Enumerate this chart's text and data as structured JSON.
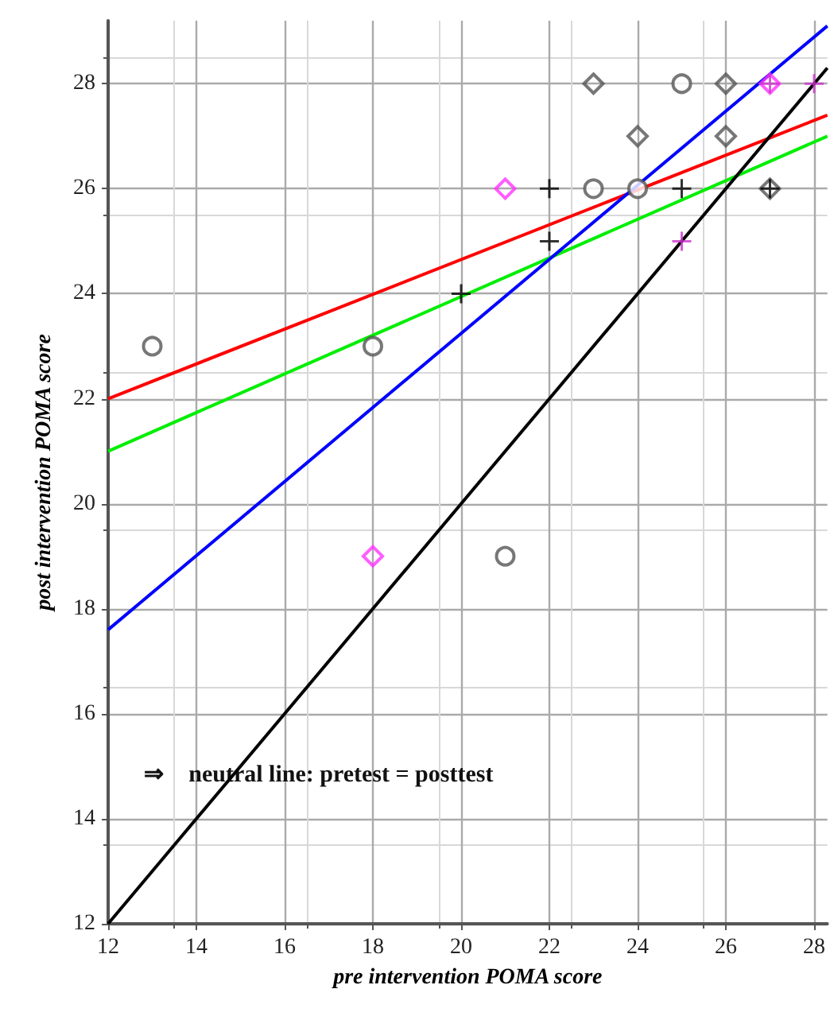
{
  "chart_data": {
    "type": "scatter",
    "xlabel": "pre intervention POMA score",
    "ylabel": "post intervention POMA score",
    "xlim": [
      12,
      28.3
    ],
    "ylim": [
      12,
      29.2
    ],
    "xticks": [
      12,
      14,
      16,
      18,
      20,
      22,
      24,
      26,
      28
    ],
    "yticks": [
      12,
      14,
      16,
      18,
      20,
      22,
      24,
      26,
      28
    ],
    "grid": true,
    "series": [
      {
        "marker": "circle",
        "color": "#555555",
        "x": [
          13,
          18,
          21,
          23,
          24,
          25
        ],
        "values": [
          23,
          23,
          19,
          26,
          26,
          28
        ]
      },
      {
        "marker": "diamond",
        "color": "#555555",
        "x": [
          23,
          24,
          26,
          26,
          27
        ],
        "values": [
          28,
          27,
          28,
          27,
          26
        ]
      },
      {
        "marker": "cross",
        "color": "#000000",
        "x": [
          20,
          22,
          22,
          25,
          27
        ],
        "values": [
          24,
          26,
          25,
          26,
          26
        ]
      },
      {
        "marker": "diamond",
        "color": "#ff33ff",
        "x": [
          18,
          21,
          27
        ],
        "values": [
          19,
          26,
          28
        ]
      },
      {
        "marker": "cross",
        "color": "#cc33cc",
        "x": [
          25,
          27,
          28
        ],
        "values": [
          25,
          28,
          28
        ]
      },
      {
        "type": "line",
        "marker": "none",
        "color": "#ff0000",
        "x": [
          12,
          28.3
        ],
        "values": [
          22,
          27.4
        ]
      },
      {
        "type": "line",
        "marker": "none",
        "color": "#00ee00",
        "x": [
          12,
          28.3
        ],
        "values": [
          21,
          27.0
        ]
      },
      {
        "type": "line",
        "marker": "none",
        "color": "#0000ff",
        "x": [
          12,
          28.3
        ],
        "values": [
          17.6,
          29.1
        ]
      },
      {
        "type": "line",
        "marker": "none",
        "color": "#000000",
        "x": [
          12,
          28.3
        ],
        "values": [
          12,
          28.3
        ]
      }
    ],
    "annotations": [
      "⇒    neutral line: pretest = posttest"
    ]
  }
}
